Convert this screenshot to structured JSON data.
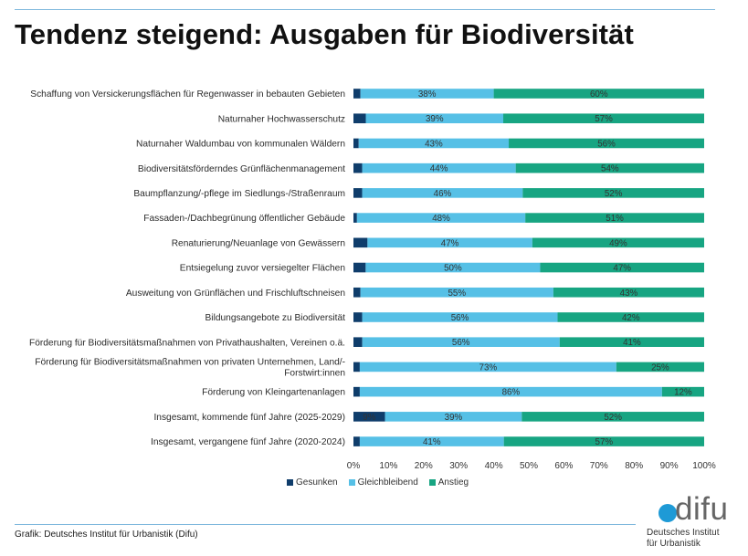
{
  "header": {
    "title": "Tendenz steigend: Ausgaben für Biodiversität"
  },
  "footer": {
    "source": "Grafik: Deutsches Institut für Urbanistik (Difu)"
  },
  "logo": {
    "word": "difu",
    "subtitle_line1": "Deutsches Institut",
    "subtitle_line2": "für Urbanistik"
  },
  "colors": {
    "gesunken": "#0f3d6b",
    "gleichbleibend": "#56c0e6",
    "anstieg": "#17a582",
    "rule": "#7fb8dd",
    "logo_dot": "#1e9ad6"
  },
  "chart_data": {
    "type": "bar",
    "orientation": "horizontal",
    "stacked": true,
    "normalized": true,
    "title": "Tendenz steigend: Ausgaben für Biodiversität",
    "categories": [
      [
        "Schaffung von Versickerungsflächen für Regenwasser in bebauten Gebieten"
      ],
      [
        "Naturnaher Hochwasserschutz"
      ],
      [
        "Naturnaher Waldumbau von kommunalen Wäldern"
      ],
      [
        "Biodiversitätsförderndes Grünflächenmanagement"
      ],
      [
        "Baumpflanzung/-pflege im Siedlungs-/Straßenraum"
      ],
      [
        "Fassaden-/Dachbegrünung öffentlicher Gebäude"
      ],
      [
        "Renaturierung/Neuanlage von Gewässern"
      ],
      [
        "Entsiegelung zuvor versiegelter Flächen"
      ],
      [
        "Ausweitung von Grünflächen und Frischluftschneisen"
      ],
      [
        "Bildungsangebote zu Biodiversität"
      ],
      [
        "Förderung für Biodiversitätsmaßnahmen von Privathaushalten, Vereinen o.ä."
      ],
      [
        "Förderung für Biodiversitätsmaßnahmen von privaten Unternehmen, Land/-",
        "Forstwirt:innen"
      ],
      [
        "Förderung von Kleingartenanlagen"
      ],
      [
        "Insgesamt, kommende fünf Jahre (2025-2029)"
      ],
      [
        "Insgesamt, vergangene fünf Jahre (2020-2024)"
      ]
    ],
    "series": [
      {
        "name": "Gesunken",
        "color": "#0f3d6b",
        "values": [
          2,
          3.5,
          1.5,
          2.5,
          2.5,
          1,
          4,
          3.5,
          2,
          2.5,
          2.5,
          1.8,
          1.8,
          9,
          1.8
        ],
        "labels": [
          "",
          "",
          "",
          "",
          "",
          "",
          "",
          "",
          "",
          "",
          "",
          "",
          "",
          "9%",
          ""
        ]
      },
      {
        "name": "Gleichbleibend",
        "color": "#56c0e6",
        "values": [
          38,
          39,
          43,
          44,
          46,
          48,
          47,
          50,
          55,
          56,
          56,
          73,
          86,
          39,
          41
        ],
        "labels": [
          "38%",
          "39%",
          "43%",
          "44%",
          "46%",
          "48%",
          "47%",
          "50%",
          "55%",
          "56%",
          "56%",
          "73%",
          "86%",
          "39%",
          "41%"
        ]
      },
      {
        "name": "Anstieg",
        "color": "#17a582",
        "values": [
          60,
          57,
          56,
          54,
          52,
          51,
          49,
          47,
          43,
          42,
          41,
          25,
          12,
          52,
          57
        ],
        "labels": [
          "60%",
          "57%",
          "56%",
          "54%",
          "52%",
          "51%",
          "49%",
          "47%",
          "43%",
          "42%",
          "41%",
          "25%",
          "12%",
          "52%",
          "57%"
        ]
      }
    ],
    "xlim": [
      0,
      100
    ],
    "xticks": [
      "0%",
      "10%",
      "20%",
      "30%",
      "40%",
      "50%",
      "60%",
      "70%",
      "80%",
      "90%",
      "100%"
    ],
    "grid": false,
    "legend": {
      "position": "bottom",
      "entries": [
        "Gesunken",
        "Gleichbleibend",
        "Anstieg"
      ]
    }
  }
}
